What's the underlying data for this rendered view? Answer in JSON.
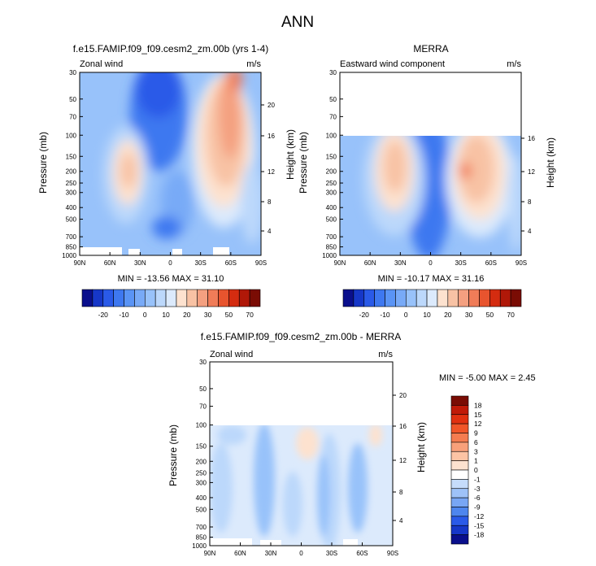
{
  "figure_title": "ANN",
  "chart_data": [
    {
      "type": "heatmap",
      "title": "f.e15.FAMIP.f09_f09.cesm2_zm.00b (yrs 1-4)",
      "left_label": "Zonal wind",
      "right_label": "m/s",
      "ylabel": "Pressure (mb)",
      "ylabel_right": "Height (km)",
      "x_ticks": [
        "90N",
        "60N",
        "30N",
        "0",
        "30S",
        "60S",
        "90S"
      ],
      "y_ticks": [
        "30",
        "50",
        "70",
        "100",
        "150",
        "200",
        "250",
        "300",
        "400",
        "500",
        "700",
        "850",
        "1000"
      ],
      "height_ticks": [
        "4",
        "8",
        "12",
        "16",
        "20"
      ],
      "stats": "MIN = -13.56  MAX = 31.10",
      "min": -13.56,
      "max": 31.1,
      "xlim": [
        90,
        -90
      ],
      "ylim": [
        1000,
        30
      ],
      "y_scale": "log",
      "data_ptop": 30,
      "features": [
        {
          "lat": -45,
          "p": 200,
          "value": 31.1,
          "desc": "southern hemisphere jet"
        },
        {
          "lat": 35,
          "p": 200,
          "value": 25,
          "desc": "northern hemisphere jet"
        },
        {
          "lat": 0,
          "p": 60,
          "value": -13.56,
          "desc": "tropical easterlies"
        }
      ]
    },
    {
      "type": "heatmap",
      "title": "MERRA",
      "left_label": "Eastward wind component",
      "right_label": "m/s",
      "ylabel": "Pressure (mb)",
      "ylabel_right": "Height (km)",
      "x_ticks": [
        "90N",
        "60N",
        "30N",
        "0",
        "30S",
        "60S",
        "90S"
      ],
      "y_ticks": [
        "30",
        "50",
        "70",
        "100",
        "150",
        "200",
        "250",
        "300",
        "400",
        "500",
        "700",
        "850",
        "1000"
      ],
      "height_ticks": [
        "4",
        "8",
        "12",
        "16"
      ],
      "stats": "MIN = -10.17  MAX = 31.16",
      "min": -10.17,
      "max": 31.16,
      "xlim": [
        90,
        -90
      ],
      "ylim": [
        1000,
        30
      ],
      "y_scale": "log",
      "data_ptop": 100,
      "features": [
        {
          "lat": -45,
          "p": 200,
          "value": 31.16,
          "desc": "southern hemisphere jet"
        },
        {
          "lat": 35,
          "p": 200,
          "value": 25,
          "desc": "northern hemisphere jet"
        },
        {
          "lat": 0,
          "p": 150,
          "value": -10.17,
          "desc": "tropical easterlies"
        }
      ]
    },
    {
      "type": "heatmap",
      "title": "f.e15.FAMIP.f09_f09.cesm2_zm.00b - MERRA",
      "left_label": "Zonal wind",
      "right_label": "m/s",
      "ylabel": "Pressure (mb)",
      "ylabel_right": "Height (km)",
      "x_ticks": [
        "90N",
        "60N",
        "30N",
        "0",
        "30S",
        "60S",
        "90S"
      ],
      "y_ticks": [
        "30",
        "50",
        "70",
        "100",
        "150",
        "200",
        "250",
        "300",
        "400",
        "500",
        "700",
        "850",
        "1000"
      ],
      "height_ticks": [
        "4",
        "8",
        "12",
        "16",
        "20"
      ],
      "stats": "MIN = -5.00  MAX =  2.45",
      "min": -5.0,
      "max": 2.45,
      "xlim": [
        90,
        -90
      ],
      "ylim": [
        1000,
        30
      ],
      "y_scale": "log",
      "data_ptop": 100,
      "features": [
        {
          "lat": 5,
          "p": 140,
          "value": 2.45,
          "desc": "positive difference over equator"
        },
        {
          "lat": 30,
          "p": 300,
          "value": -5.0,
          "desc": "negative difference band"
        }
      ]
    }
  ],
  "colorbar_full": {
    "labels": [
      "-20",
      "-10",
      "0",
      "10",
      "20",
      "30",
      "50",
      "70"
    ],
    "colors": [
      "#0a0f8c",
      "#1637c8",
      "#2a5ae8",
      "#3e78f0",
      "#5a94f5",
      "#78aaf7",
      "#98c2fa",
      "#bcd8fb",
      "#dceafc",
      "#fde2cf",
      "#f8c2a4",
      "#f4a080",
      "#f07c58",
      "#e8542e",
      "#d42c10",
      "#b01808",
      "#7a0c04"
    ]
  },
  "colorbar_diff": {
    "labels": [
      "18",
      "15",
      "12",
      "9",
      "6",
      "3",
      "1",
      "0",
      "-1",
      "-3",
      "-6",
      "-9",
      "-12",
      "-15",
      "-18"
    ],
    "colors": [
      "#7a0c04",
      "#c01a08",
      "#e03010",
      "#f05528",
      "#f47c50",
      "#f8a07a",
      "#fcc4a4",
      "#fde2cf",
      "#ffffff",
      "#c6dcfb",
      "#9ec2f8",
      "#78a6f4",
      "#4e86ee",
      "#2a5ae8",
      "#1637c8",
      "#0a0f8c"
    ]
  }
}
